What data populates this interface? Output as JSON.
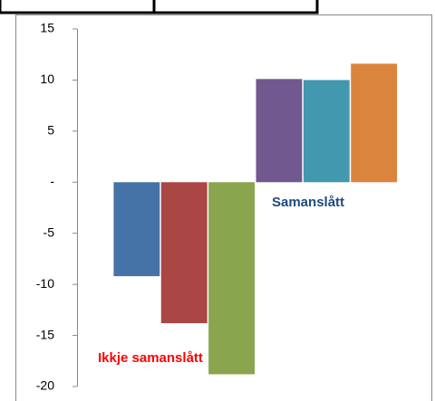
{
  "chart_data": {
    "type": "bar",
    "categories": [
      null
    ],
    "series": [
      {
        "color": "#4572a7",
        "values": [
          -9.2
        ]
      },
      {
        "color": "#aa4643",
        "values": [
          -13.8
        ]
      },
      {
        "color": "#89a54e",
        "values": [
          -18.8
        ]
      },
      {
        "color": "#71588f",
        "values": [
          10.1
        ]
      },
      {
        "color": "#4198af",
        "values": [
          10.0
        ]
      },
      {
        "color": "#db843d",
        "values": [
          11.6
        ]
      }
    ],
    "ylim": [
      -20,
      15
    ],
    "yticks": [
      -20,
      -15,
      -10,
      -5,
      {
        "value": 0,
        "label": "-"
      },
      5,
      10,
      15
    ],
    "grid": false,
    "annotations": [
      {
        "text": "Samanslått",
        "color": "#1f497d"
      },
      {
        "text": "Ikkje samanslått",
        "color": "#ff0000"
      }
    ]
  }
}
